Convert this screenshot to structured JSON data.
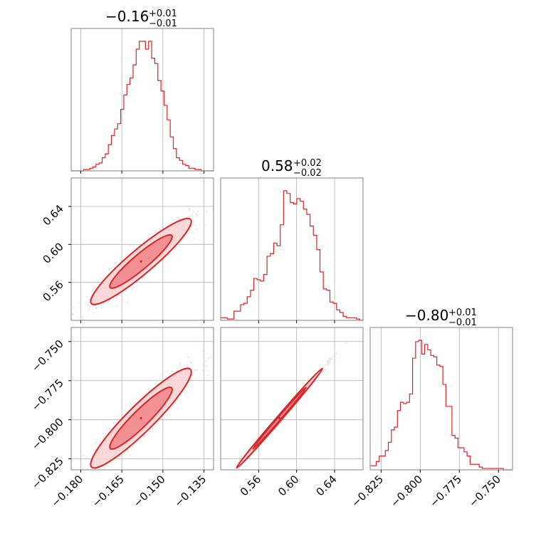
{
  "colors": {
    "accent": "#d62728",
    "fill_light": "#f9d2d3",
    "fill_mid": "#f08588",
    "grid": "#b0b0b0",
    "frame": "#808080"
  },
  "chart_data": {
    "type": "corner",
    "parameters": [
      {
        "title_main": "−0.16",
        "title_plus": "+0.01",
        "title_minus": "−0.01",
        "median": -0.158,
        "ticks": [
          -0.18,
          -0.165,
          -0.15,
          -0.135
        ],
        "tick_labels": [
          "−0.180",
          "−0.165",
          "−0.150",
          "−0.135"
        ],
        "range": [
          -0.1835,
          -0.1315
        ],
        "hist_edges_range": [
          -0.1835,
          -0.1315
        ],
        "hist": [
          0,
          0,
          0,
          0,
          1,
          1,
          2,
          3,
          5,
          6,
          10,
          13,
          20,
          27,
          32,
          36,
          47,
          58,
          66,
          71,
          81,
          93,
          99,
          99,
          93,
          99,
          86,
          82,
          69,
          61,
          50,
          39,
          26,
          17,
          10,
          8,
          5,
          4,
          2,
          2,
          1,
          1,
          0,
          0,
          0,
          0
        ]
      },
      {
        "title_main": "0.58",
        "title_plus": "+0.02",
        "title_minus": "−0.02",
        "median": 0.582,
        "ticks": [
          0.56,
          0.6,
          0.64
        ],
        "tick_labels": [
          "0.56",
          "0.60",
          "0.64"
        ],
        "range": [
          0.52,
          0.67
        ],
        "hist_edges_range": [
          0.52,
          0.67
        ],
        "hist": [
          2,
          2,
          1,
          1,
          7,
          7,
          12,
          13,
          18,
          23,
          32,
          31,
          30,
          35,
          49,
          51,
          59,
          57,
          73,
          99,
          97,
          90,
          89,
          93,
          91,
          85,
          81,
          72,
          65,
          54,
          37,
          24,
          23,
          14,
          13,
          8,
          6,
          3,
          2,
          2,
          2,
          1,
          0
        ]
      },
      {
        "title_main": "−0.80",
        "title_plus": "+0.01",
        "title_minus": "−0.01",
        "median": -0.799,
        "ticks": [
          -0.825,
          -0.8,
          -0.775,
          -0.75
        ],
        "tick_labels": [
          "−0.825",
          "−0.800",
          "−0.775",
          "−0.750"
        ],
        "range": [
          -0.832,
          -0.741
        ],
        "hist_edges_range": [
          -0.832,
          -0.741
        ],
        "hist": [
          3,
          3,
          6,
          10,
          10,
          14,
          20,
          29,
          31,
          43,
          49,
          48,
          49,
          55,
          81,
          93,
          94,
          84,
          91,
          87,
          83,
          82,
          76,
          75,
          62,
          46,
          46,
          25,
          23,
          16,
          16,
          13,
          10,
          4,
          4,
          4,
          2,
          1,
          1,
          1,
          1,
          1,
          1,
          1,
          0,
          0,
          0
        ]
      }
    ],
    "pairs": [
      {
        "x_param": 0,
        "y_param": 1,
        "slope": 0.004,
        "x_center": -0.158,
        "y_center": 0.582,
        "sx": 0.0075,
        "sy": 0.0185,
        "rho": 0.93
      },
      {
        "x_param": 0,
        "y_param": 2,
        "x_center": -0.158,
        "y_center": -0.799,
        "sx": 0.0075,
        "sy": 0.013,
        "rho": 0.93
      },
      {
        "x_param": 1,
        "y_param": 2,
        "x_center": 0.582,
        "y_center": -0.799,
        "sx": 0.0185,
        "sy": 0.013,
        "rho": 0.997
      }
    ],
    "contour_levels": [
      "1-sigma",
      "2-sigma"
    ],
    "grid": true
  }
}
